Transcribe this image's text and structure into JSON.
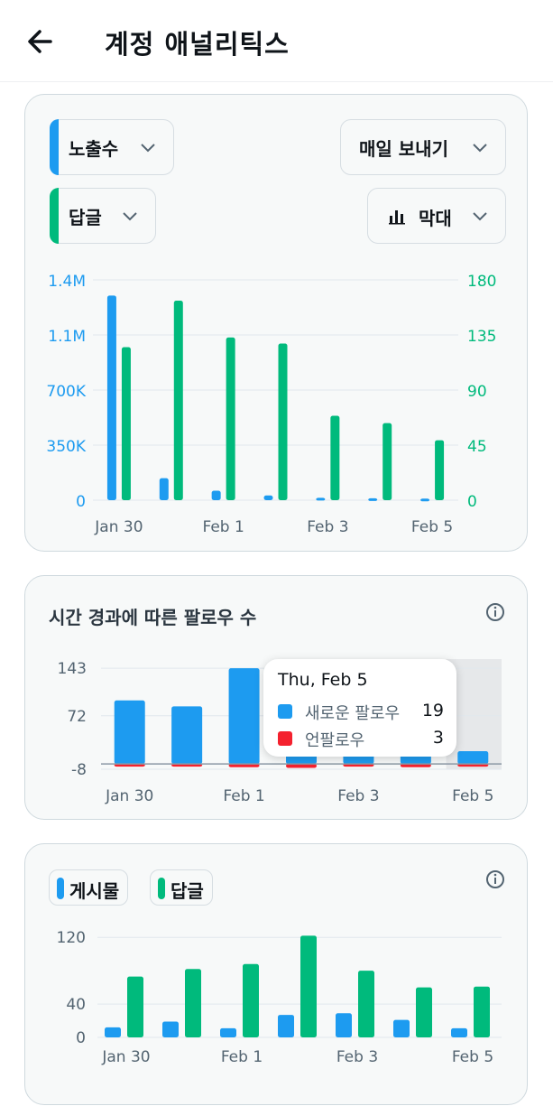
{
  "header": {
    "title": "계정 애널리틱스"
  },
  "colors": {
    "blue": "#1d9bf0",
    "green": "#00ba7c",
    "red": "#f4212e",
    "axis_gray": "#536471",
    "grid": "#e1e8ed"
  },
  "card1": {
    "metric1": "노출수",
    "metric2": "답글",
    "frequency": "매일 보내기",
    "chart_type_label": "막대",
    "chart_type_icon": "bar-chart-icon"
  },
  "card2": {
    "title": "시간 경과에 따른 팔로우 수"
  },
  "card3": {
    "legend": [
      "게시물",
      "답글"
    ]
  },
  "tooltip": {
    "date": "Thu, Feb 5",
    "rows": [
      {
        "label": "새로운 팔로우",
        "value": "19"
      },
      {
        "label": "언팔로우",
        "value": "3"
      }
    ]
  },
  "chart_data": [
    {
      "type": "bar",
      "title": "",
      "categories": [
        "Jan 30",
        "Jan 31",
        "Feb 1",
        "Feb 2",
        "Feb 3",
        "Feb 4",
        "Feb 5"
      ],
      "x_tick_labels": [
        "Jan 30",
        "Feb 1",
        "Feb 3",
        "Feb 5"
      ],
      "series": [
        {
          "name": "노출수",
          "axis": "left",
          "color": "#1d9bf0",
          "values": [
            1300000,
            140000,
            60000,
            30000,
            15000,
            12000,
            10000
          ]
        },
        {
          "name": "답글",
          "axis": "right",
          "color": "#00ba7c",
          "values": [
            125,
            163,
            133,
            128,
            69,
            63,
            49
          ]
        }
      ],
      "y_left": {
        "ticks": [
          "0",
          "350K",
          "700K",
          "1.1M",
          "1.4M"
        ],
        "tick_values": [
          0,
          350000,
          700000,
          1050000,
          1400000
        ],
        "ylim": [
          0,
          1400000
        ]
      },
      "y_right": {
        "ticks": [
          "0",
          "45",
          "90",
          "135",
          "180"
        ],
        "tick_values": [
          0,
          45,
          90,
          135,
          180
        ],
        "ylim": [
          0,
          180
        ]
      },
      "grid": true
    },
    {
      "type": "bar",
      "title": "시간 경과에 따른 팔로우 수",
      "categories": [
        "Jan 30",
        "Jan 31",
        "Feb 1",
        "Feb 2",
        "Feb 3",
        "Feb 4",
        "Feb 5"
      ],
      "x_tick_labels": [
        "Jan 30",
        "Feb 1",
        "Feb 3",
        "Feb 5"
      ],
      "series": [
        {
          "name": "새로운 팔로우",
          "color": "#1d9bf0",
          "values": [
            95,
            86,
            143,
            19,
            19,
            19,
            19
          ]
        },
        {
          "name": "언팔로우",
          "color": "#f4212e",
          "values": [
            -4,
            -2,
            -5,
            -6,
            -4,
            -5,
            -3
          ]
        }
      ],
      "y_ticks": [
        "-8",
        "72",
        "143"
      ],
      "y_tick_values": [
        -8,
        72,
        143
      ],
      "ylim": [
        -8,
        150
      ],
      "highlighted_category": "Feb 5",
      "grid": true
    },
    {
      "type": "bar",
      "title": "",
      "categories": [
        "Jan 30",
        "Jan 31",
        "Feb 1",
        "Feb 2",
        "Feb 3",
        "Feb 4",
        "Feb 5"
      ],
      "x_tick_labels": [
        "Jan 30",
        "Feb 1",
        "Feb 3",
        "Feb 5"
      ],
      "series": [
        {
          "name": "게시물",
          "color": "#1d9bf0",
          "values": [
            12,
            19,
            11,
            27,
            29,
            21,
            11
          ]
        },
        {
          "name": "답글",
          "color": "#00ba7c",
          "values": [
            73,
            82,
            88,
            122,
            80,
            60,
            61
          ]
        }
      ],
      "y_ticks": [
        "0",
        "40",
        "120"
      ],
      "y_tick_values": [
        0,
        40,
        120
      ],
      "ylim": [
        0,
        130
      ],
      "grid": true
    }
  ]
}
